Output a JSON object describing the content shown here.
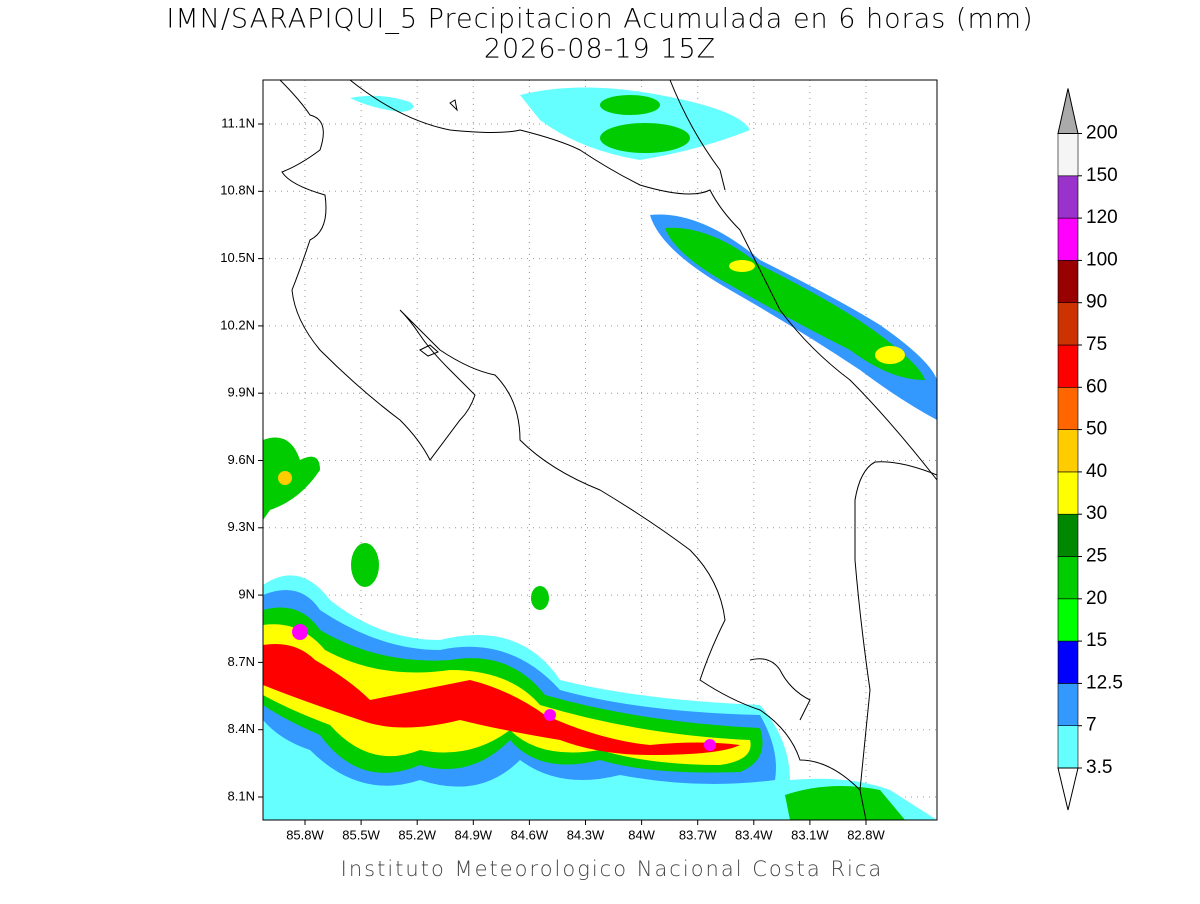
{
  "title": "IMN/SARAPIQUI_5 Precipitacion Acumulada en 6 horas (mm)",
  "subtitle": "2026-08-19 15Z",
  "lon_labels": [
    "85.8W",
    "85.5W",
    "85.2W",
    "84.9W",
    "84.6W",
    "84.3W",
    "84W",
    "83.7W",
    "83.4W",
    "83.1W",
    "82.8W"
  ],
  "lat_labels": [
    "11.1N",
    "10.8N",
    "10.5N",
    "10.2N",
    "9.9N",
    "9.6N",
    "9.3N",
    "9N",
    "8.7N",
    "8.4N",
    "8.1N"
  ],
  "colorbar": {
    "levels": [
      3.5,
      7,
      12.5,
      15,
      20,
      25,
      30,
      40,
      50,
      60,
      75,
      90,
      100,
      120,
      150,
      200
    ],
    "colors": [
      "#66ffff",
      "#3399ff",
      "#0000ff",
      "#00ff00",
      "#00cc00",
      "#008800",
      "#ffff00",
      "#ffcc00",
      "#ff6600",
      "#ff0000",
      "#cc3300",
      "#990000",
      "#ff00ff",
      "#9933cc",
      "#f5f5f5"
    ],
    "under_color": "#ffffff",
    "over_color": "#aaaaaa"
  },
  "footer": "Instituto Meteorologico Nacional Costa Rica"
}
